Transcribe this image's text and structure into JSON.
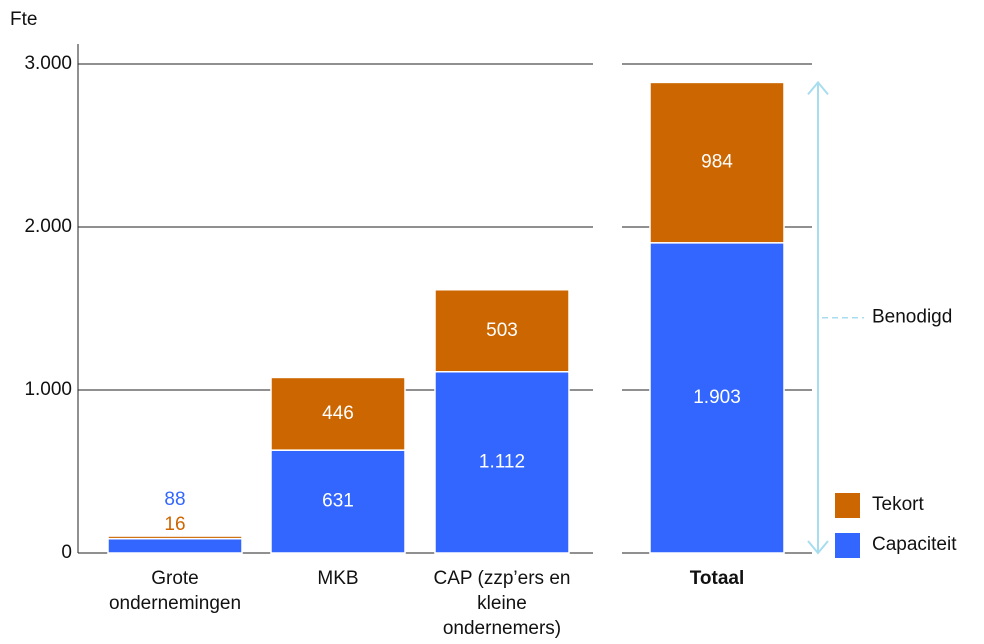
{
  "chart_data": {
    "type": "stacked_bar",
    "y_axis_label": "Fte",
    "categories": [
      "Grote ondernemingen",
      "MKB",
      "CAP (zzp’ers en kleine ondernemers)",
      "Totaal"
    ],
    "series": [
      {
        "name": "Capaciteit",
        "color": "#3366ff",
        "values": [
          88,
          631,
          1112,
          1903
        ],
        "value_labels": [
          "88",
          "631",
          "1.112",
          "1.903"
        ]
      },
      {
        "name": "Tekort",
        "color": "#cc6600",
        "values": [
          16,
          446,
          503,
          984
        ]
      }
    ],
    "ylim": [
      0,
      3000
    ],
    "yticks": [
      0,
      {
        "value": 1000,
        "label": "1.000"
      },
      {
        "value": 2000,
        "label": "2.000"
      },
      {
        "value": 3000,
        "label": "3.000"
      }
    ],
    "grid": true,
    "annotation": {
      "text": "Benodigd",
      "color": "#a8dcef"
    }
  }
}
